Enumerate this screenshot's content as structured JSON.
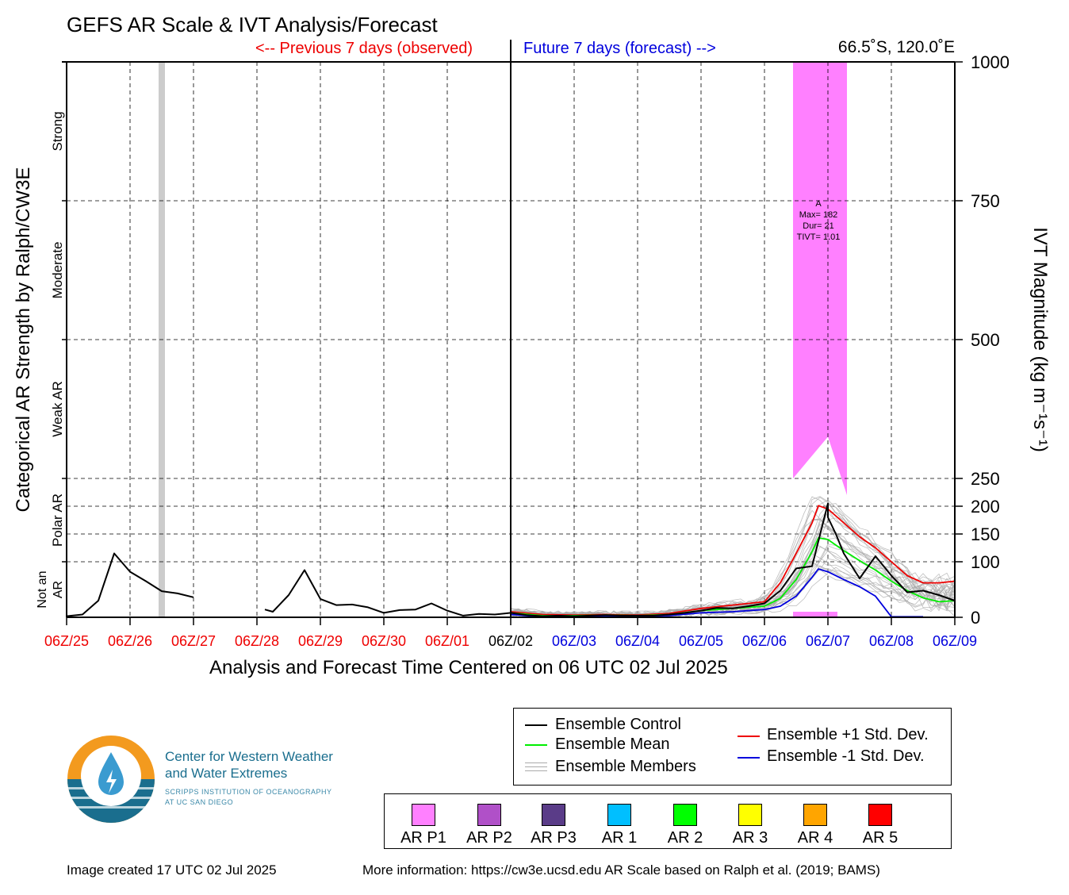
{
  "header": {
    "title": "GEFS AR Scale & IVT Analysis/Forecast",
    "prev_label": "<-- Previous 7 days (observed)",
    "future_label": "Future 7 days (forecast) -->",
    "location": "66.5˚S, 120.0˚E"
  },
  "footer": {
    "created": "Image created 17 UTC 02 Jul 2025",
    "more_info": "More information: https://cw3e.ucsd.edu AR Scale based on Ralph et al. (2019; BAMS)"
  },
  "logo": {
    "line1": "Center for Western Weather",
    "line2": "and Water Extremes",
    "line3": "SCRIPPS INSTITUTION OF OCEANOGRAPHY",
    "line4": "AT UC SAN DIEGO"
  },
  "legend": {
    "control": "Ensemble Control",
    "mean": "Ensemble Mean",
    "members": "Ensemble Members",
    "plus_std": "Ensemble +1 Std. Dev.",
    "minus_std": "Ensemble -1 Std. Dev."
  },
  "categories": [
    {
      "label": "AR P1",
      "color": "#ff80ff"
    },
    {
      "label": "AR P2",
      "color": "#b050c8"
    },
    {
      "label": "AR P3",
      "color": "#5a3c88"
    },
    {
      "label": "AR 1",
      "color": "#00bfff"
    },
    {
      "label": "AR 2",
      "color": "#00ff00"
    },
    {
      "label": "AR 3",
      "color": "#ffff00"
    },
    {
      "label": "AR 4",
      "color": "#ffa500"
    },
    {
      "label": "AR 5",
      "color": "#ff0000"
    }
  ],
  "chart_data": {
    "type": "line",
    "xlabel": "Analysis and Forecast Time Centered on 06 UTC 02 Jul 2025",
    "ylabel_left": "Categorical AR Strength by Ralph/CW3E",
    "ylabel_right": "IVT Magnitude (kg m⁻¹s⁻¹)",
    "x_ticks": [
      {
        "label": "06Z/25",
        "color": "#ee0000"
      },
      {
        "label": "06Z/26",
        "color": "#ee0000"
      },
      {
        "label": "06Z/27",
        "color": "#ee0000"
      },
      {
        "label": "06Z/28",
        "color": "#ee0000"
      },
      {
        "label": "06Z/29",
        "color": "#ee0000"
      },
      {
        "label": "06Z/30",
        "color": "#ee0000"
      },
      {
        "label": "06Z/01",
        "color": "#ee0000"
      },
      {
        "label": "06Z/02",
        "color": "#000000"
      },
      {
        "label": "06Z/03",
        "color": "#0000dd"
      },
      {
        "label": "06Z/04",
        "color": "#0000dd"
      },
      {
        "label": "06Z/05",
        "color": "#0000dd"
      },
      {
        "label": "06Z/06",
        "color": "#0000dd"
      },
      {
        "label": "06Z/07",
        "color": "#0000dd"
      },
      {
        "label": "06Z/08",
        "color": "#0000dd"
      },
      {
        "label": "06Z/09",
        "color": "#0000dd"
      }
    ],
    "xlim_days": [
      -7,
      7
    ],
    "ylim": [
      0,
      1000
    ],
    "right_ticks": [
      0,
      100,
      150,
      200,
      250,
      500,
      750,
      1000
    ],
    "category_bands": [
      {
        "label": "Not an AR",
        "range": [
          0,
          100
        ]
      },
      {
        "label": "Polar AR",
        "range": [
          100,
          250
        ]
      },
      {
        "label": "Weak AR",
        "range": [
          250,
          500
        ]
      },
      {
        "label": "Moderate",
        "range": [
          500,
          750
        ]
      },
      {
        "label": "Strong",
        "range": [
          750,
          1000
        ]
      }
    ],
    "observed_shading": {
      "start": -5.55,
      "end": -5.45,
      "color": "#cccccc"
    },
    "ar_event": {
      "start": 4.45,
      "end": 5.3,
      "color": "#ff80ff",
      "annotation": [
        "A",
        "Max= 182",
        "Dur= 21",
        "TIVT= 1.01"
      ]
    },
    "series": [
      {
        "name": "Ensemble Control",
        "color": "#000000",
        "segments": [
          [
            [
              -7,
              2
            ],
            [
              -6.75,
              5
            ],
            [
              -6.5,
              30
            ],
            [
              -6.25,
              115
            ],
            [
              -6,
              82
            ],
            [
              -5.75,
              65
            ],
            [
              -5.5,
              47
            ],
            [
              -5.25,
              43
            ],
            [
              -5,
              36
            ]
          ],
          [
            [
              -3.875,
              14
            ],
            [
              -3.75,
              10
            ],
            [
              -3.5,
              40
            ],
            [
              -3.25,
              85
            ],
            [
              -3,
              33
            ],
            [
              -2.75,
              22
            ],
            [
              -2.5,
              23
            ],
            [
              -2.25,
              18
            ],
            [
              -2,
              8
            ],
            [
              -1.75,
              13
            ],
            [
              -1.5,
              14
            ],
            [
              -1.25,
              25
            ],
            [
              -1,
              12
            ],
            [
              -0.75,
              3
            ],
            [
              -0.5,
              6
            ],
            [
              -0.25,
              5
            ],
            [
              0,
              8
            ],
            [
              0.25,
              4
            ],
            [
              0.5,
              2
            ],
            [
              0.75,
              3
            ],
            [
              1,
              2
            ],
            [
              1.25,
              3
            ],
            [
              1.5,
              4
            ],
            [
              1.75,
              3
            ],
            [
              2,
              3
            ],
            [
              2.25,
              3
            ],
            [
              2.5,
              5
            ],
            [
              2.75,
              8
            ],
            [
              3,
              12
            ],
            [
              3.25,
              17
            ],
            [
              3.5,
              16
            ],
            [
              3.75,
              20
            ],
            [
              4,
              25
            ],
            [
              4.25,
              48
            ],
            [
              4.5,
              88
            ],
            [
              4.75,
              92
            ],
            [
              5,
              205
            ],
            [
              5,
              180
            ],
            [
              5.125,
              150
            ],
            [
              5.25,
              115
            ],
            [
              5.5,
              70
            ],
            [
              5.75,
              110
            ],
            [
              6,
              75
            ],
            [
              6.25,
              45
            ],
            [
              6.5,
              48
            ],
            [
              6.75,
              40
            ],
            [
              7,
              30
            ]
          ]
        ]
      },
      {
        "name": "Ensemble Mean",
        "color": "#00ee00",
        "segments": [
          [
            [
              0,
              8
            ],
            [
              0.5,
              3
            ],
            [
              1,
              3
            ],
            [
              1.5,
              4
            ],
            [
              2,
              3
            ],
            [
              2.5,
              5
            ],
            [
              3,
              12
            ],
            [
              3.5,
              16
            ],
            [
              4,
              20
            ],
            [
              4.25,
              34
            ],
            [
              4.5,
              68
            ],
            [
              4.75,
              118
            ],
            [
              4.85,
              143
            ],
            [
              5,
              140
            ],
            [
              5.25,
              120
            ],
            [
              5.5,
              102
            ],
            [
              5.75,
              85
            ],
            [
              6,
              65
            ],
            [
              6.25,
              48
            ],
            [
              6.5,
              35
            ],
            [
              6.75,
              28
            ],
            [
              7,
              30
            ]
          ]
        ]
      },
      {
        "name": "Ensemble +1 Std. Dev.",
        "color": "#ee0000",
        "segments": [
          [
            [
              0,
              10
            ],
            [
              0.5,
              5
            ],
            [
              1,
              4
            ],
            [
              1.5,
              5
            ],
            [
              2,
              4
            ],
            [
              2.5,
              7
            ],
            [
              3,
              16
            ],
            [
              3.5,
              22
            ],
            [
              4,
              28
            ],
            [
              4.25,
              62
            ],
            [
              4.5,
              115
            ],
            [
              4.75,
              170
            ],
            [
              4.85,
              201
            ],
            [
              5,
              195
            ],
            [
              5.25,
              170
            ],
            [
              5.5,
              145
            ],
            [
              5.75,
              125
            ],
            [
              6,
              100
            ],
            [
              6.25,
              75
            ],
            [
              6.5,
              62
            ],
            [
              6.75,
              62
            ],
            [
              7,
              65
            ]
          ]
        ]
      },
      {
        "name": "Ensemble -1 Std. Dev.",
        "color": "#0000dd",
        "segments": [
          [
            [
              0,
              5
            ],
            [
              0.5,
              1
            ],
            [
              1,
              1
            ],
            [
              1.5,
              2
            ],
            [
              2,
              2
            ],
            [
              2.5,
              3
            ],
            [
              3,
              8
            ],
            [
              3.5,
              10
            ],
            [
              4,
              14
            ],
            [
              4.25,
              20
            ],
            [
              4.5,
              38
            ],
            [
              4.75,
              72
            ],
            [
              4.85,
              87
            ],
            [
              5,
              82
            ],
            [
              5.25,
              68
            ],
            [
              5.5,
              55
            ],
            [
              5.75,
              38
            ],
            [
              6,
              1
            ],
            [
              6.25,
              1
            ],
            [
              6.5,
              1
            ]
          ]
        ]
      }
    ],
    "members_color": "#aaaaaa"
  }
}
